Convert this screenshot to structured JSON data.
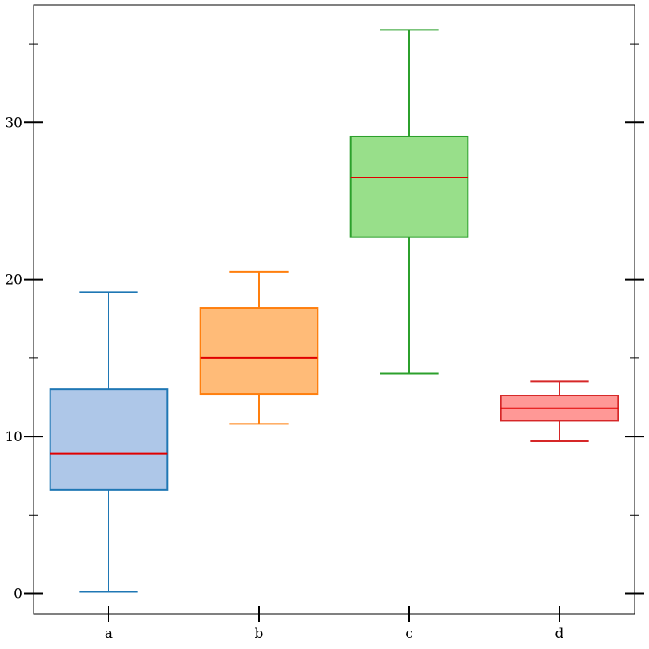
{
  "chart_data": {
    "type": "box",
    "title": "",
    "xlabel": "",
    "ylabel": "",
    "categories": [
      "a",
      "b",
      "c",
      "d"
    ],
    "boxes": [
      {
        "label": "a",
        "min": 0.1,
        "q1": 6.6,
        "median": 8.9,
        "q3": 13.0,
        "max": 19.2,
        "fill": "#aec7e8",
        "stroke": "#1f77b4"
      },
      {
        "label": "b",
        "min": 10.8,
        "q1": 12.7,
        "median": 15.0,
        "q3": 18.2,
        "max": 20.5,
        "fill": "#ffbb78",
        "stroke": "#ff7f0e"
      },
      {
        "label": "c",
        "min": 14.0,
        "q1": 22.7,
        "median": 26.5,
        "q3": 29.1,
        "max": 35.9,
        "fill": "#98df8a",
        "stroke": "#2ca02c"
      },
      {
        "label": "d",
        "min": 9.7,
        "q1": 11.0,
        "median": 11.8,
        "q3": 12.6,
        "max": 13.5,
        "fill": "#ff9896",
        "stroke": "#d62728"
      }
    ],
    "median_color": "#e00000",
    "ylim": [
      -1.3,
      37.5
    ],
    "yticks_major": [
      0,
      10,
      20,
      30
    ],
    "yticks_minor": [
      5,
      15,
      25,
      35
    ],
    "grid": false,
    "legend": "none"
  }
}
